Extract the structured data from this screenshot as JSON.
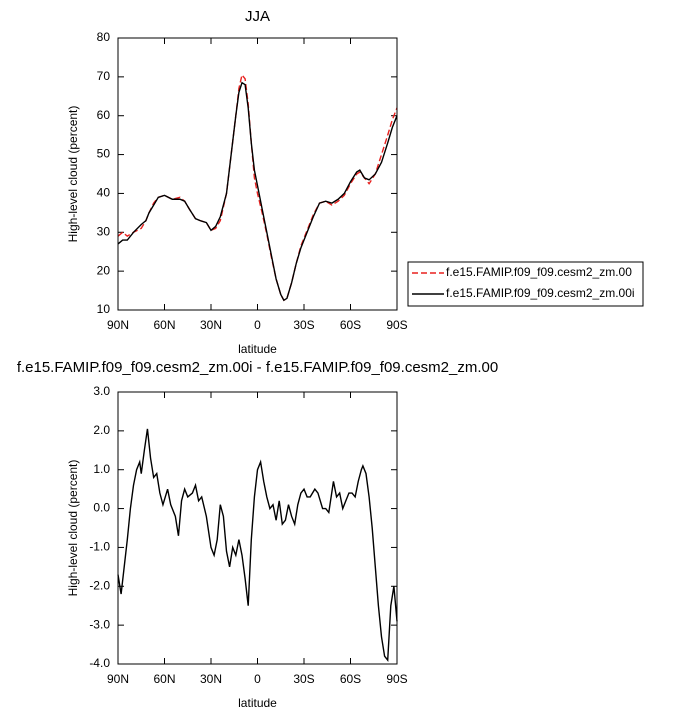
{
  "chart_data": [
    {
      "type": "line",
      "title": "JJA",
      "xlabel": "latitude",
      "ylabel": "High-level cloud (percent)",
      "xlim": [
        90,
        -90
      ],
      "xticks": [
        {
          "value": 90,
          "label": "90N"
        },
        {
          "value": 60,
          "label": "60N"
        },
        {
          "value": 30,
          "label": "30N"
        },
        0,
        {
          "value": -30,
          "label": "30S"
        },
        {
          "value": -60,
          "label": "60S"
        },
        {
          "value": -90,
          "label": "90S"
        }
      ],
      "ylim": [
        10,
        80
      ],
      "yticks": [
        10,
        20,
        30,
        40,
        50,
        60,
        70,
        80
      ],
      "legend": "right",
      "x": [
        90,
        87,
        84,
        80,
        75,
        72,
        70,
        67,
        64,
        60,
        55,
        50,
        47,
        44,
        40,
        37,
        33,
        30,
        27,
        24,
        20,
        17,
        14,
        12,
        10,
        8,
        6,
        4,
        2,
        0,
        -3,
        -6,
        -9,
        -12,
        -15,
        -17,
        -19,
        -22,
        -25,
        -28,
        -32,
        -36,
        -40,
        -44,
        -48,
        -52,
        -56,
        -60,
        -64,
        -66,
        -69,
        -72,
        -76,
        -80,
        -84,
        -87,
        -90
      ],
      "series": [
        {
          "name": "f.e15.FAMIP.f09_f09.cesm2_zm.00",
          "color": "#e8201e",
          "linestyle": "dashed",
          "values": [
            29,
            30,
            29,
            30,
            31,
            33,
            35,
            37.5,
            39,
            39.5,
            38.5,
            39,
            38,
            36,
            33.5,
            33,
            32.5,
            30.5,
            31,
            33,
            40,
            50,
            60,
            67,
            70.5,
            69.5,
            63,
            53,
            44,
            40,
            35,
            29.5,
            23.5,
            18,
            14,
            12.5,
            13,
            17,
            22,
            26.5,
            30.5,
            34.5,
            37.5,
            38,
            37,
            38,
            39.5,
            42.5,
            45,
            45.5,
            44,
            42.5,
            45,
            50,
            55,
            59,
            62
          ]
        },
        {
          "name": "f.e15.FAMIP.f09_f09.cesm2_zm.00i",
          "color": "#000000",
          "linestyle": "solid",
          "values": [
            27,
            28,
            28,
            30,
            32,
            33,
            35,
            37,
            39,
            39.5,
            38.5,
            38.5,
            38,
            36,
            33.5,
            33,
            32.5,
            30.5,
            31.5,
            34,
            40,
            50,
            60,
            66,
            68.5,
            68,
            62,
            53,
            46,
            42,
            36,
            30,
            24,
            18,
            14,
            12.5,
            13,
            17,
            22,
            26,
            30,
            34,
            37.5,
            38,
            37.5,
            38.5,
            40,
            43,
            45.5,
            46,
            44,
            43.5,
            45,
            48,
            53,
            57,
            60
          ]
        }
      ]
    },
    {
      "type": "line",
      "title": "f.e15.FAMIP.f09_f09.cesm2_zm.00i - f.e15.FAMIP.f09_f09.cesm2_zm.00",
      "xlabel": "latitude",
      "ylabel": "High-level cloud (percent)",
      "xlim": [
        90,
        -90
      ],
      "xticks": [
        {
          "value": 90,
          "label": "90N"
        },
        {
          "value": 60,
          "label": "60N"
        },
        {
          "value": 30,
          "label": "30N"
        },
        0,
        {
          "value": -30,
          "label": "30S"
        },
        {
          "value": -60,
          "label": "60S"
        },
        {
          "value": -90,
          "label": "90S"
        }
      ],
      "ylim": [
        -4,
        3
      ],
      "yticks": [
        {
          "value": -4,
          "label": "-4.0"
        },
        {
          "value": -3,
          "label": "-3.0"
        },
        {
          "value": -2,
          "label": "-2.0"
        },
        {
          "value": -1,
          "label": "-1.0"
        },
        {
          "value": 0,
          "label": "0.0"
        },
        {
          "value": 1,
          "label": "1.0"
        },
        {
          "value": 2,
          "label": "2.0"
        },
        {
          "value": 3,
          "label": "3.0"
        }
      ],
      "x": [
        90,
        88,
        86,
        84,
        82,
        80,
        78,
        76,
        75,
        73,
        71,
        69,
        67,
        65,
        63,
        61,
        58,
        56,
        53,
        51,
        49,
        47,
        45,
        42,
        40,
        38,
        36,
        33,
        30,
        28,
        26,
        24,
        22,
        20,
        18,
        16,
        14,
        12,
        10,
        8,
        6,
        4,
        2,
        0,
        -2,
        -4,
        -6,
        -8,
        -10,
        -12,
        -14,
        -16,
        -18,
        -20,
        -22,
        -24,
        -26,
        -28,
        -30,
        -32,
        -34,
        -37,
        -39,
        -42,
        -44,
        -46,
        -49,
        -51,
        -53,
        -55,
        -57,
        -59,
        -61,
        -63,
        -65,
        -67,
        -68,
        -70,
        -72,
        -74,
        -76,
        -78,
        -80,
        -82,
        -84,
        -86,
        -88,
        -90
      ],
      "series": [
        {
          "color": "#000000",
          "linestyle": "solid",
          "values": [
            -1.7,
            -2.2,
            -1.5,
            -0.8,
            0,
            0.6,
            1.0,
            1.2,
            0.9,
            1.5,
            2.05,
            1.3,
            0.8,
            0.9,
            0.4,
            0.1,
            0.5,
            0.1,
            -0.2,
            -0.7,
            0.2,
            0.5,
            0.3,
            0.4,
            0.6,
            0.2,
            0.3,
            -0.2,
            -1.0,
            -1.2,
            -0.8,
            0.1,
            -0.2,
            -1.1,
            -1.5,
            -1.0,
            -1.2,
            -0.8,
            -1.2,
            -1.8,
            -2.5,
            -0.8,
            0.3,
            1.0,
            1.2,
            0.7,
            0.3,
            0.0,
            0.1,
            -0.3,
            0.2,
            -0.4,
            -0.3,
            0.1,
            -0.2,
            -0.4,
            0.1,
            0.4,
            0.5,
            0.3,
            0.3,
            0.5,
            0.4,
            0.0,
            0.0,
            -0.1,
            0.7,
            0.3,
            0.4,
            0.0,
            0.2,
            0.4,
            0.4,
            0.3,
            0.7,
            1.0,
            1.1,
            0.9,
            0.3,
            -0.5,
            -1.5,
            -2.5,
            -3.3,
            -3.8,
            -3.9,
            -2.5,
            -2.0,
            -2.9
          ]
        }
      ]
    }
  ]
}
